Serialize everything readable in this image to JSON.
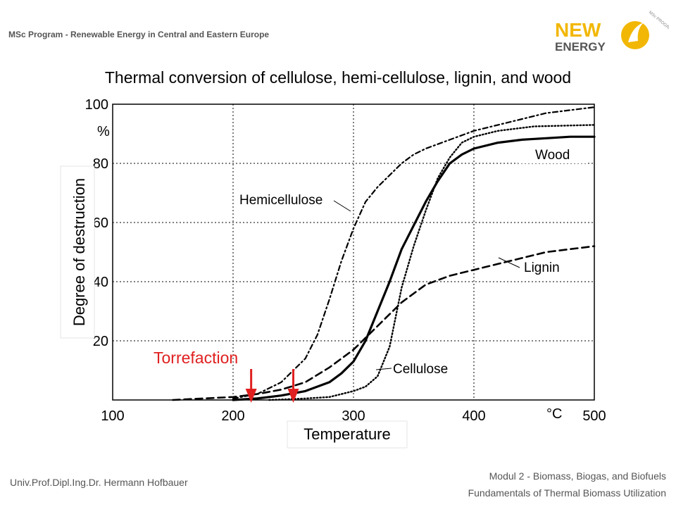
{
  "header": {
    "program": "MSc Program - Renewable Energy in Central and Eastern Europe",
    "logo_text_line1": "NEW",
    "logo_text_line2": "ENERGY",
    "logo_ring_text": "MSc PROGRAM"
  },
  "slide": {
    "title": "Thermal conversion of cellulose, hemi-cellulose, lignin, and wood"
  },
  "footer": {
    "author": "Univ.Prof.Dipl.Ing.Dr. Hermann Hofbauer",
    "module": "Modul 2 - Biomass, Biogas, and Biofuels",
    "course": "Fundamentals of Thermal Biomass Utilization"
  },
  "colors": {
    "accent": "#f2b705",
    "arrow": "#e02020",
    "torrefaction_text": "#e02020",
    "logo_gray": "#555555"
  },
  "chart_data": {
    "type": "line",
    "title": "",
    "xlabel": "Temperature",
    "ylabel": "Degree of destruction",
    "x_unit": "°C",
    "y_unit": "%",
    "xlim": [
      100,
      500
    ],
    "ylim": [
      0,
      100
    ],
    "x_ticks": [
      "100",
      "200",
      "300",
      "400",
      "500"
    ],
    "y_ticks": [
      "20",
      "40",
      "60",
      "80",
      "100"
    ],
    "grid": true,
    "series": [
      {
        "name": "Wood",
        "style": "solid",
        "points": [
          [
            200,
            0
          ],
          [
            220,
            0.5
          ],
          [
            240,
            1.5
          ],
          [
            260,
            3
          ],
          [
            280,
            6
          ],
          [
            290,
            9
          ],
          [
            300,
            13
          ],
          [
            310,
            20
          ],
          [
            320,
            30
          ],
          [
            330,
            40
          ],
          [
            340,
            51
          ],
          [
            350,
            59
          ],
          [
            360,
            67
          ],
          [
            370,
            74
          ],
          [
            380,
            80
          ],
          [
            390,
            83
          ],
          [
            400,
            85
          ],
          [
            420,
            87
          ],
          [
            440,
            88
          ],
          [
            460,
            88.5
          ],
          [
            480,
            89
          ],
          [
            500,
            89
          ]
        ]
      },
      {
        "name": "Hemicellulose",
        "style": "dashdot",
        "points": [
          [
            200,
            0.5
          ],
          [
            220,
            2
          ],
          [
            240,
            6
          ],
          [
            260,
            14
          ],
          [
            270,
            22
          ],
          [
            280,
            34
          ],
          [
            290,
            47
          ],
          [
            300,
            58
          ],
          [
            310,
            67
          ],
          [
            320,
            72
          ],
          [
            330,
            76
          ],
          [
            340,
            80
          ],
          [
            350,
            83
          ],
          [
            360,
            85
          ],
          [
            380,
            88
          ],
          [
            400,
            91
          ],
          [
            420,
            93
          ],
          [
            440,
            95
          ],
          [
            460,
            97
          ],
          [
            480,
            98
          ],
          [
            500,
            99
          ]
        ]
      },
      {
        "name": "Cellulose",
        "style": "dotted",
        "points": [
          [
            230,
            0
          ],
          [
            260,
            0.5
          ],
          [
            280,
            1
          ],
          [
            300,
            3
          ],
          [
            310,
            4.5
          ],
          [
            320,
            8
          ],
          [
            330,
            18
          ],
          [
            340,
            38
          ],
          [
            350,
            52
          ],
          [
            360,
            64
          ],
          [
            370,
            75
          ],
          [
            380,
            82
          ],
          [
            390,
            87
          ],
          [
            400,
            89
          ],
          [
            420,
            91
          ],
          [
            450,
            92.5
          ],
          [
            500,
            93
          ]
        ]
      },
      {
        "name": "Lignin",
        "style": "dashed",
        "points": [
          [
            150,
            0
          ],
          [
            200,
            1
          ],
          [
            220,
            2
          ],
          [
            240,
            3.5
          ],
          [
            260,
            6
          ],
          [
            280,
            11
          ],
          [
            300,
            17
          ],
          [
            320,
            25
          ],
          [
            340,
            33
          ],
          [
            360,
            39
          ],
          [
            380,
            42
          ],
          [
            400,
            44
          ],
          [
            420,
            46
          ],
          [
            440,
            48
          ],
          [
            460,
            50
          ],
          [
            480,
            51
          ],
          [
            500,
            52
          ]
        ]
      }
    ],
    "annotations": [
      {
        "text": "Wood",
        "for": "Wood"
      },
      {
        "text": "Hemicellulose",
        "for": "Hemicellulose"
      },
      {
        "text": "Lignin",
        "for": "Lignin"
      },
      {
        "text": "Cellulose",
        "for": "Cellulose"
      },
      {
        "text": "Torrefaction",
        "arrows_at_x": [
          215,
          250
        ]
      }
    ]
  }
}
